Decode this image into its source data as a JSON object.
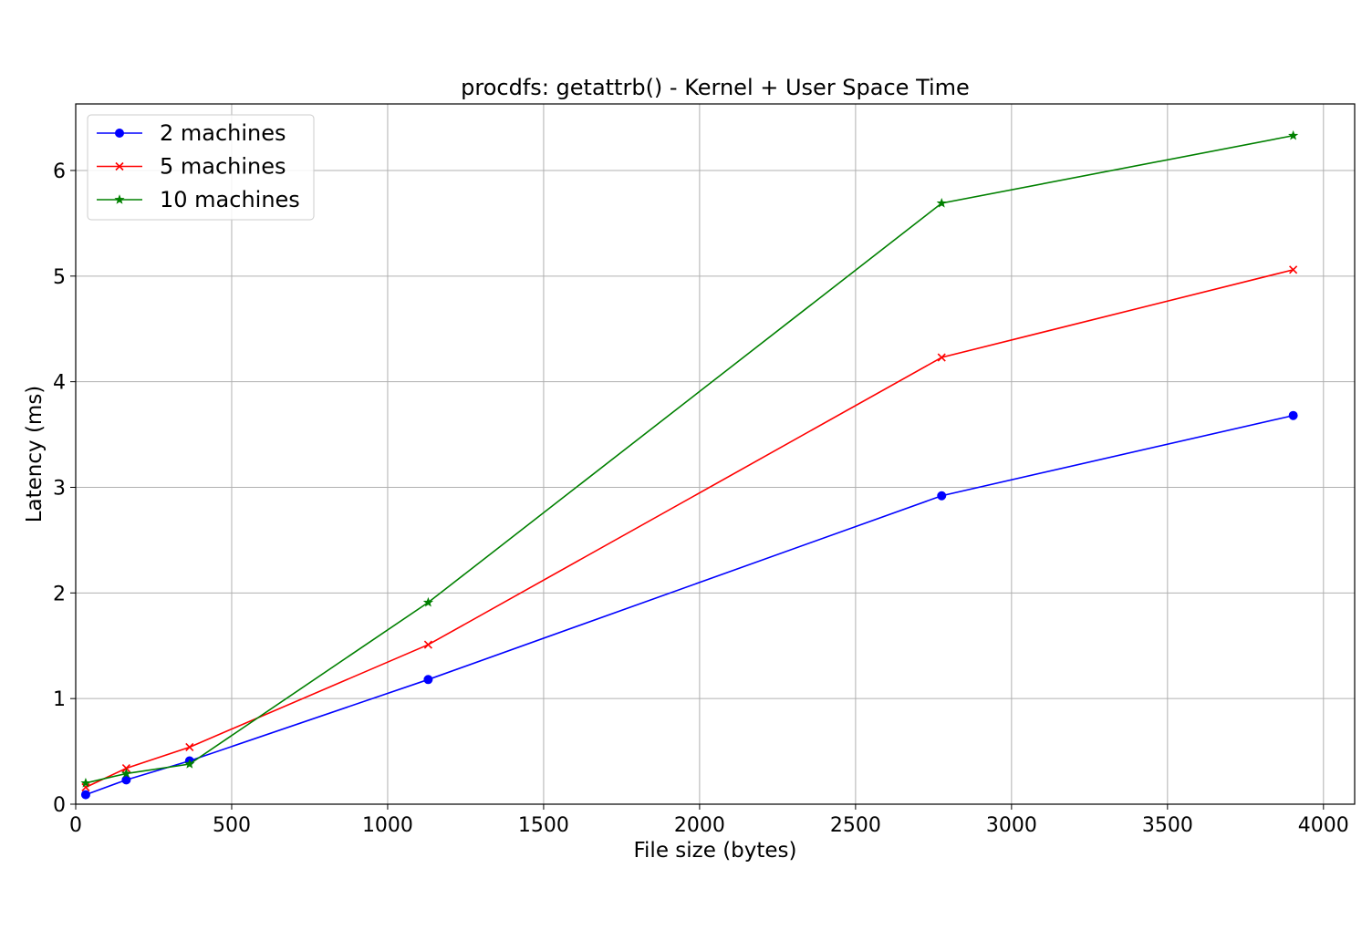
{
  "chart_data": {
    "type": "line",
    "title": "procdfs: getattrb() - Kernel + User Space Time",
    "xlabel": "File size (bytes)",
    "ylabel": "Latency (ms)",
    "xlim": [
      0,
      4100
    ],
    "ylim": [
      0,
      6.63
    ],
    "xticks": [
      0,
      500,
      1000,
      1500,
      2000,
      2500,
      3000,
      3500,
      4000
    ],
    "yticks": [
      0,
      1,
      2,
      3,
      4,
      5,
      6
    ],
    "grid": true,
    "legend_position": "top-left",
    "series": [
      {
        "name": "2 machines",
        "color": "#0000ff",
        "marker": "circle",
        "x": [
          32,
          162,
          365,
          1130,
          2776,
          3903
        ],
        "y": [
          0.09,
          0.23,
          0.41,
          1.18,
          2.92,
          3.68
        ]
      },
      {
        "name": "5 machines",
        "color": "#ff0000",
        "marker": "x",
        "x": [
          32,
          162,
          365,
          1130,
          2776,
          3903
        ],
        "y": [
          0.16,
          0.34,
          0.54,
          1.51,
          4.23,
          5.06
        ]
      },
      {
        "name": "10 machines",
        "color": "#008000",
        "marker": "star",
        "x": [
          32,
          162,
          365,
          1130,
          2776,
          3903
        ],
        "y": [
          0.2,
          0.29,
          0.38,
          1.91,
          5.69,
          6.33
        ]
      }
    ]
  }
}
